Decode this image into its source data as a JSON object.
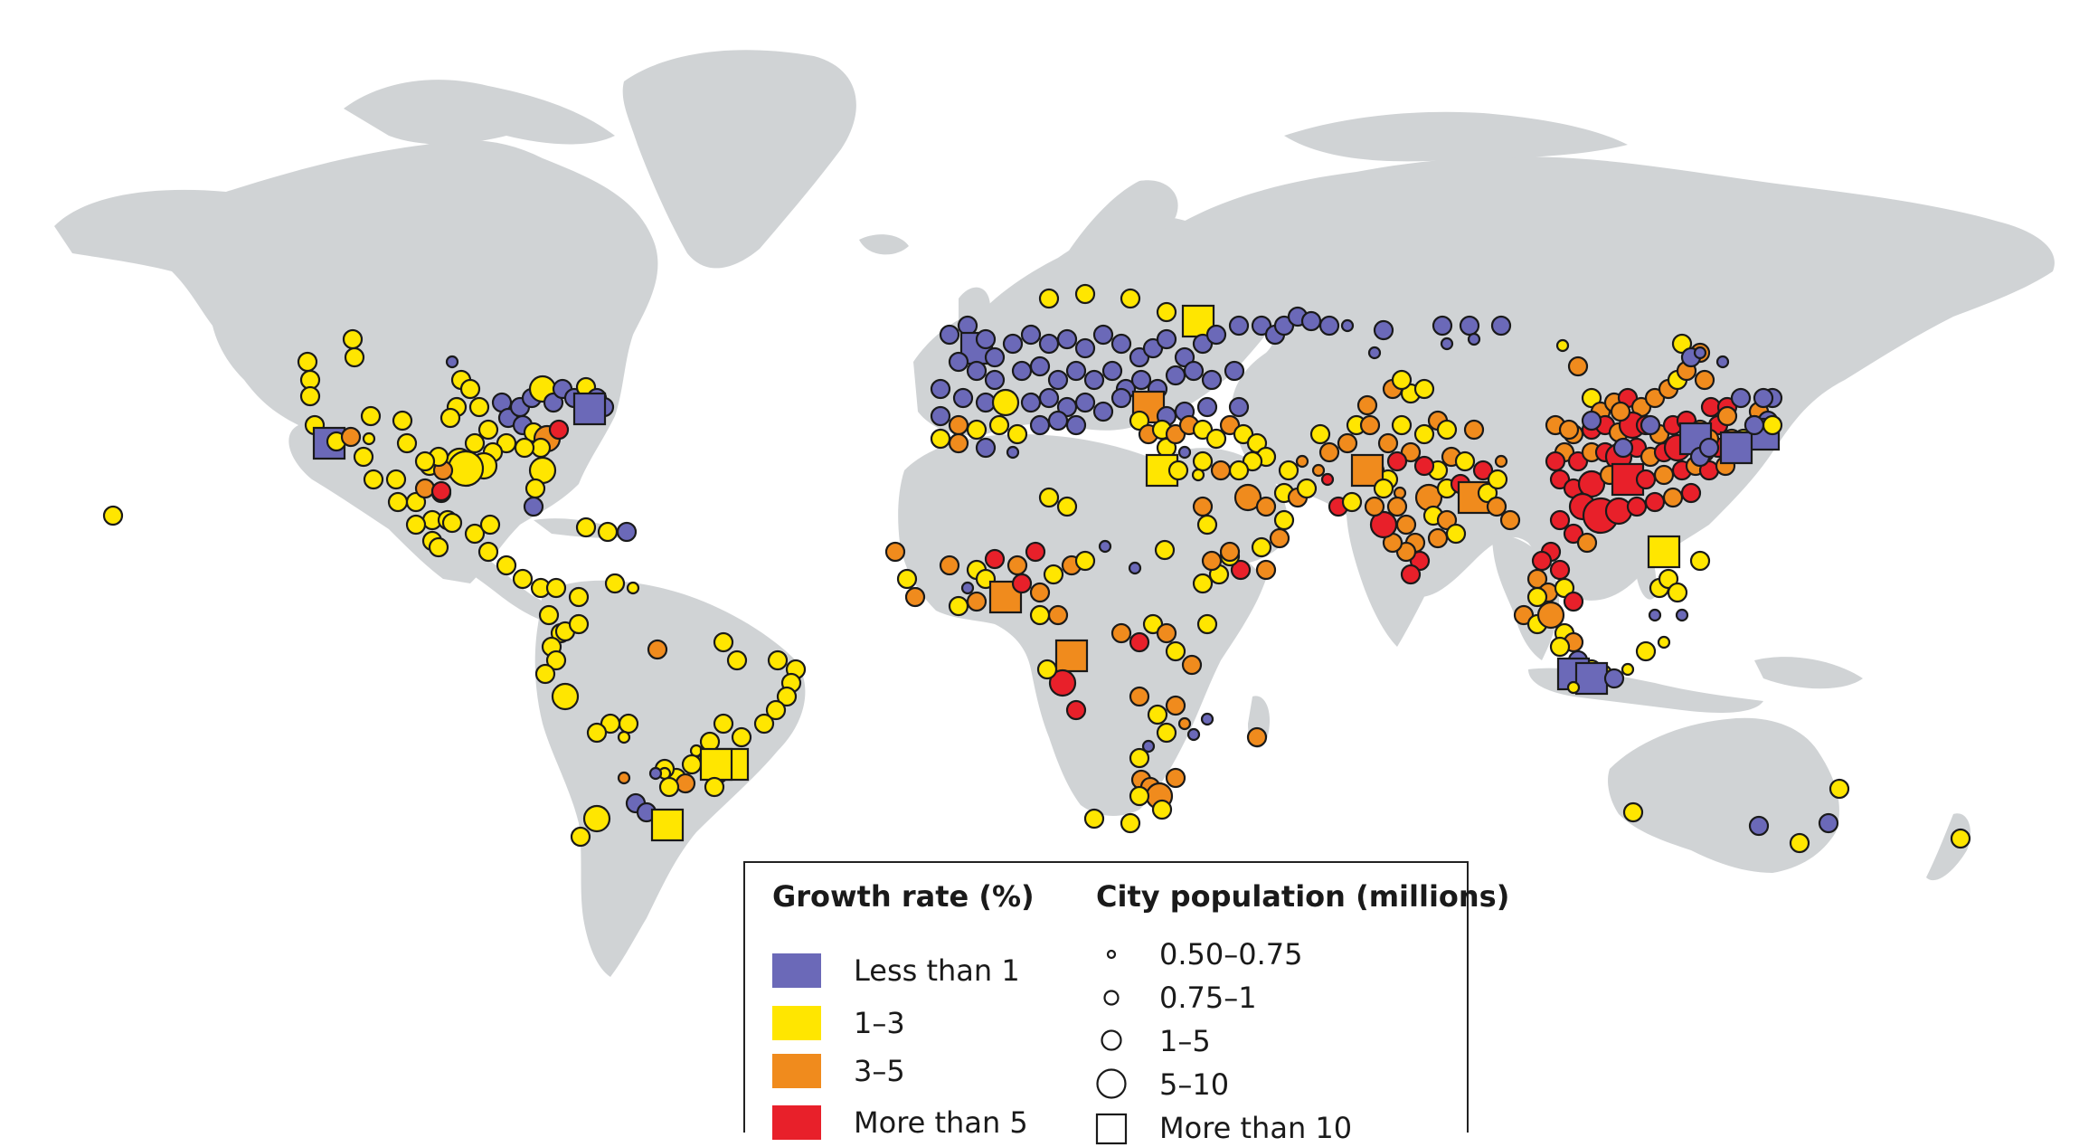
{
  "legend": {
    "growth": {
      "title": "Growth rate (%)",
      "items": [
        {
          "label": "Less than 1",
          "color": "#6b69b8"
        },
        {
          "label": "1–3",
          "color": "#ffe600"
        },
        {
          "label": "3–5",
          "color": "#f08b1d"
        },
        {
          "label": "More than 5",
          "color": "#e8202a"
        }
      ]
    },
    "population": {
      "title": "City population (millions)",
      "items": [
        {
          "label": "0.50–0.75",
          "symbol": "circle"
        },
        {
          "label": "0.75–1",
          "symbol": "circle"
        },
        {
          "label": "1–5",
          "symbol": "circle"
        },
        {
          "label": "5–10",
          "symbol": "circle"
        },
        {
          "label": "More than 10",
          "symbol": "square"
        }
      ]
    }
  }
}
